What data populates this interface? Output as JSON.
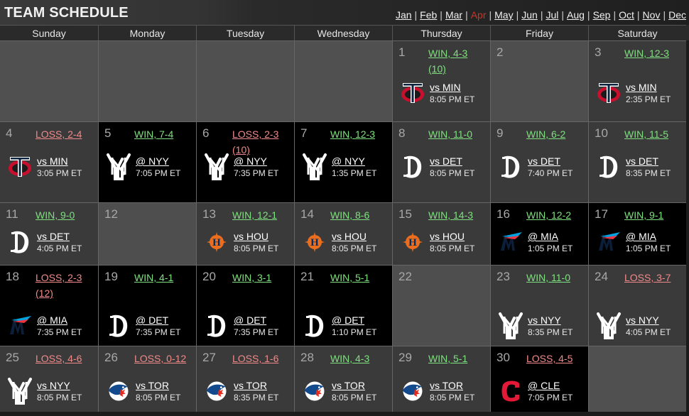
{
  "header": {
    "title": "TEAM SCHEDULE",
    "months": [
      "Jan",
      "Feb",
      "Mar",
      "Apr",
      "May",
      "Jun",
      "Jul",
      "Aug",
      "Sep",
      "Oct",
      "Nov",
      "Dec"
    ],
    "active_month": "Apr",
    "active_color": "#c0392b"
  },
  "weekdays": [
    "Sunday",
    "Monday",
    "Tuesday",
    "Wednesday",
    "Thursday",
    "Friday",
    "Saturday"
  ],
  "colors": {
    "win": "#7fe07f",
    "loss": "#f08a8a",
    "home_bg": "#3a3a3a",
    "away_bg": "#000000",
    "empty_bg": "#505050"
  },
  "days": [
    {
      "empty": true
    },
    {
      "empty": true
    },
    {
      "empty": true
    },
    {
      "empty": true
    },
    {
      "day": "1",
      "result": "WIN, 4-3",
      "extra": "(10)",
      "outcome": "win",
      "opp": "vs MIN",
      "time": "8:05 PM ET",
      "logo": "twins-logo",
      "loc": "home"
    },
    {
      "day": "2",
      "off": true
    },
    {
      "day": "3",
      "result": "WIN, 12-3",
      "outcome": "win",
      "opp": "vs MIN",
      "time": "2:35 PM ET",
      "logo": "twins-logo",
      "loc": "home"
    },
    {
      "day": "4",
      "result": "LOSS, 2-4",
      "outcome": "loss",
      "opp": "vs MIN",
      "time": "3:05 PM ET",
      "logo": "twins-logo",
      "loc": "home"
    },
    {
      "day": "5",
      "result": "WIN, 7-4",
      "outcome": "win",
      "opp": "@ NYY",
      "time": "7:05 PM ET",
      "logo": "yankees-logo",
      "loc": "away"
    },
    {
      "day": "6",
      "result": "LOSS, 2-3",
      "extra": "(10)",
      "outcome": "loss",
      "opp": "@ NYY",
      "time": "7:35 PM ET",
      "logo": "yankees-logo",
      "loc": "away"
    },
    {
      "day": "7",
      "result": "WIN, 12-3",
      "outcome": "win",
      "opp": "@ NYY",
      "time": "1:35 PM ET",
      "logo": "yankees-logo",
      "loc": "away"
    },
    {
      "day": "8",
      "result": "WIN, 11-0",
      "outcome": "win",
      "opp": "vs DET",
      "time": "8:05 PM ET",
      "logo": "tigers-logo",
      "loc": "home"
    },
    {
      "day": "9",
      "result": "WIN, 6-2",
      "outcome": "win",
      "opp": "vs DET",
      "time": "7:40 PM ET",
      "logo": "tigers-logo",
      "loc": "home"
    },
    {
      "day": "10",
      "result": "WIN, 11-5",
      "outcome": "win",
      "opp": "vs DET",
      "time": "8:35 PM ET",
      "logo": "tigers-logo",
      "loc": "home"
    },
    {
      "day": "11",
      "result": "WIN, 9-0",
      "outcome": "win",
      "opp": "vs DET",
      "time": "4:05 PM ET",
      "logo": "tigers-logo",
      "loc": "home"
    },
    {
      "day": "12",
      "off": true
    },
    {
      "day": "13",
      "result": "WIN, 12-1",
      "outcome": "win",
      "opp": "vs HOU",
      "time": "8:05 PM ET",
      "logo": "astros-logo",
      "loc": "home"
    },
    {
      "day": "14",
      "result": "WIN, 8-6",
      "outcome": "win",
      "opp": "vs HOU",
      "time": "8:05 PM ET",
      "logo": "astros-logo",
      "loc": "home"
    },
    {
      "day": "15",
      "result": "WIN, 14-3",
      "outcome": "win",
      "opp": "vs HOU",
      "time": "8:05 PM ET",
      "logo": "astros-logo",
      "loc": "home"
    },
    {
      "day": "16",
      "result": "WIN, 12-2",
      "outcome": "win",
      "opp": "@ MIA",
      "time": "1:05 PM ET",
      "logo": "marlins-logo",
      "loc": "away"
    },
    {
      "day": "17",
      "result": "WIN, 9-1",
      "outcome": "win",
      "opp": "@ MIA",
      "time": "1:05 PM ET",
      "logo": "marlins-logo",
      "loc": "away"
    },
    {
      "day": "18",
      "result": "LOSS, 2-3",
      "extra": "(12)",
      "outcome": "loss",
      "opp": "@ MIA",
      "time": "7:35 PM ET",
      "logo": "marlins-logo",
      "loc": "away"
    },
    {
      "day": "19",
      "result": "WIN, 4-1",
      "outcome": "win",
      "opp": "@ DET",
      "time": "7:35 PM ET",
      "logo": "tigers-logo",
      "loc": "away"
    },
    {
      "day": "20",
      "result": "WIN, 3-1",
      "outcome": "win",
      "opp": "@ DET",
      "time": "7:35 PM ET",
      "logo": "tigers-logo",
      "loc": "away"
    },
    {
      "day": "21",
      "result": "WIN, 5-1",
      "outcome": "win",
      "opp": "@ DET",
      "time": "1:10 PM ET",
      "logo": "tigers-logo",
      "loc": "away"
    },
    {
      "day": "22",
      "off": true
    },
    {
      "day": "23",
      "result": "WIN, 11-0",
      "outcome": "win",
      "opp": "vs NYY",
      "time": "8:35 PM ET",
      "logo": "yankees-logo",
      "loc": "home"
    },
    {
      "day": "24",
      "result": "LOSS, 3-7",
      "outcome": "loss",
      "opp": "vs NYY",
      "time": "4:05 PM ET",
      "logo": "yankees-logo",
      "loc": "home"
    },
    {
      "day": "25",
      "result": "LOSS, 4-6",
      "outcome": "loss",
      "opp": "vs NYY",
      "time": "8:05 PM ET",
      "logo": "yankees-logo",
      "loc": "home"
    },
    {
      "day": "26",
      "result": "LOSS, 0-12",
      "outcome": "loss",
      "opp": "vs TOR",
      "time": "8:05 PM ET",
      "logo": "bluejays-logo",
      "loc": "home"
    },
    {
      "day": "27",
      "result": "LOSS, 1-6",
      "outcome": "loss",
      "opp": "vs TOR",
      "time": "8:35 PM ET",
      "logo": "bluejays-logo",
      "loc": "home"
    },
    {
      "day": "28",
      "result": "WIN, 4-3",
      "outcome": "win",
      "opp": "vs TOR",
      "time": "8:05 PM ET",
      "logo": "bluejays-logo",
      "loc": "home"
    },
    {
      "day": "29",
      "result": "WIN, 5-1",
      "outcome": "win",
      "opp": "vs TOR",
      "time": "8:05 PM ET",
      "logo": "bluejays-logo",
      "loc": "home"
    },
    {
      "day": "30",
      "result": "LOSS, 4-5",
      "outcome": "loss",
      "opp": "@ CLE",
      "time": "7:05 PM ET",
      "logo": "guardians-logo",
      "loc": "away"
    },
    {
      "empty": true
    }
  ]
}
